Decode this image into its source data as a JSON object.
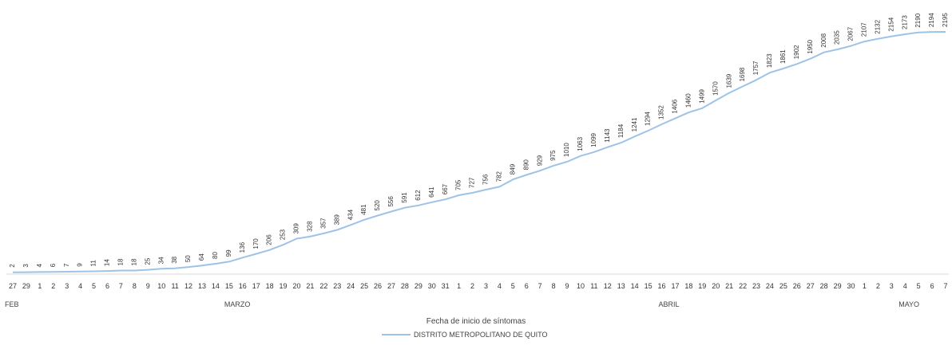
{
  "chart_data": {
    "type": "line",
    "xlabel": "Fecha de inicio de síntomas",
    "x": [
      "27",
      "29",
      "1",
      "2",
      "3",
      "4",
      "5",
      "6",
      "7",
      "8",
      "9",
      "10",
      "11",
      "12",
      "13",
      "14",
      "15",
      "16",
      "17",
      "18",
      "19",
      "20",
      "21",
      "22",
      "23",
      "24",
      "25",
      "26",
      "27",
      "28",
      "29",
      "30",
      "31",
      "1",
      "2",
      "3",
      "4",
      "5",
      "6",
      "7",
      "8",
      "9",
      "10",
      "11",
      "12",
      "13",
      "14",
      "15",
      "16",
      "17",
      "18",
      "19",
      "20",
      "21",
      "22",
      "23",
      "24",
      "25",
      "26",
      "27",
      "28",
      "29",
      "30",
      "1",
      "2",
      "3",
      "4",
      "5",
      "6",
      "7"
    ],
    "months": [
      {
        "label": "FEB",
        "index": 0
      },
      {
        "label": "MARZO",
        "index": 16
      },
      {
        "label": "ABRIL",
        "index": 48
      },
      {
        "label": "MAYO",
        "index": 66
      }
    ],
    "series": [
      {
        "name": "DISTRITO METROPOLITANO DE QUITO",
        "color": "#9dc3e6",
        "values": [
          2,
          3,
          4,
          6,
          7,
          9,
          11,
          14,
          18,
          18,
          25,
          34,
          38,
          50,
          64,
          80,
          99,
          136,
          170,
          206,
          253,
          309,
          328,
          357,
          389,
          434,
          481,
          520,
          556,
          591,
          612,
          641,
          667,
          705,
          727,
          756,
          782,
          849,
          890,
          929,
          975,
          1010,
          1063,
          1099,
          1143,
          1184,
          1241,
          1294,
          1352,
          1406,
          1460,
          1499,
          1570,
          1639,
          1698,
          1757,
          1823,
          1861,
          1902,
          1950,
          2008,
          2035,
          2067,
          2107,
          2132,
          2154,
          2173,
          2190,
          2194,
          2195
        ]
      }
    ],
    "ylim": [
      0,
      2300
    ],
    "grid": false,
    "legend": "bottom-center"
  }
}
